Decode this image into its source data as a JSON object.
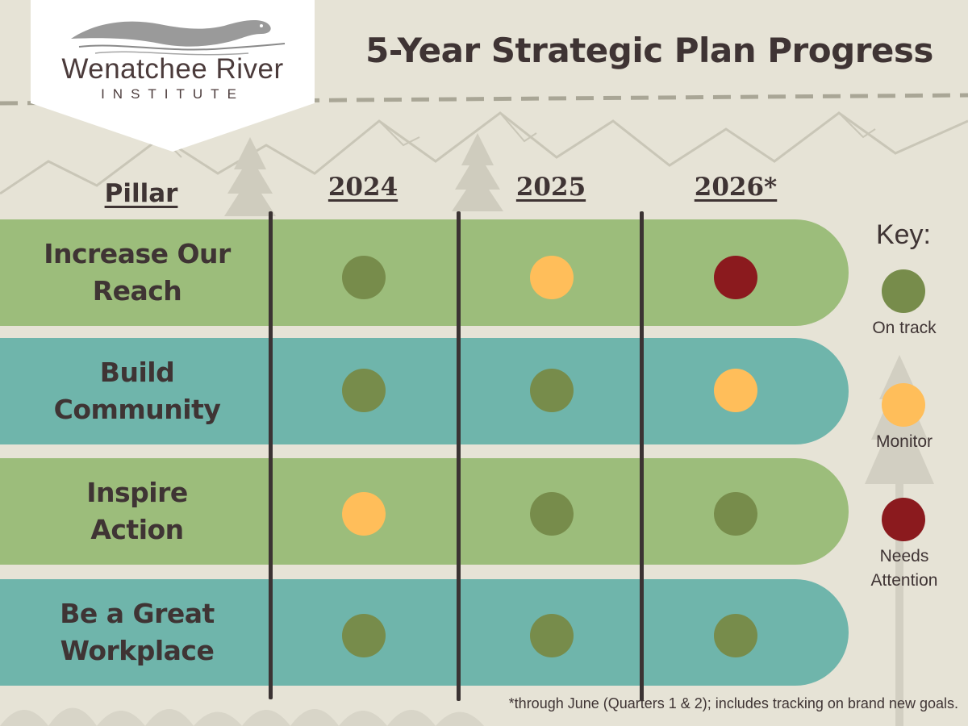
{
  "logo": {
    "name": "Wenatchee River",
    "subtitle": "INSTITUTE"
  },
  "title": "5-Year Strategic Plan Progress",
  "headers": {
    "pillar": "Pillar",
    "years": [
      "2024",
      "2025",
      "2026*"
    ]
  },
  "rows": [
    {
      "pillar": "Increase Our Reach",
      "statuses": [
        "on_track",
        "monitor",
        "needs_attention"
      ]
    },
    {
      "pillar": "Build Community",
      "statuses": [
        "on_track",
        "on_track",
        "monitor"
      ]
    },
    {
      "pillar": "Inspire Action",
      "statuses": [
        "monitor",
        "on_track",
        "on_track"
      ]
    },
    {
      "pillar": "Be a Great Workplace",
      "statuses": [
        "on_track",
        "on_track",
        "on_track"
      ]
    }
  ],
  "key": {
    "title": "Key:",
    "items": [
      {
        "status": "on_track",
        "label": "On track"
      },
      {
        "status": "monitor",
        "label": "Monitor"
      },
      {
        "status": "needs_attention",
        "label": "Needs Attention"
      }
    ]
  },
  "status_colors": {
    "on_track": "#778c4b",
    "monitor": "#ffbe5a",
    "needs_attention": "#8b1a1e"
  },
  "band_colors": {
    "green": "#9cbd7b",
    "teal": "#6fb5ab"
  },
  "footnote": "*through June (Quarters 1 & 2); includes tracking on brand new goals."
}
